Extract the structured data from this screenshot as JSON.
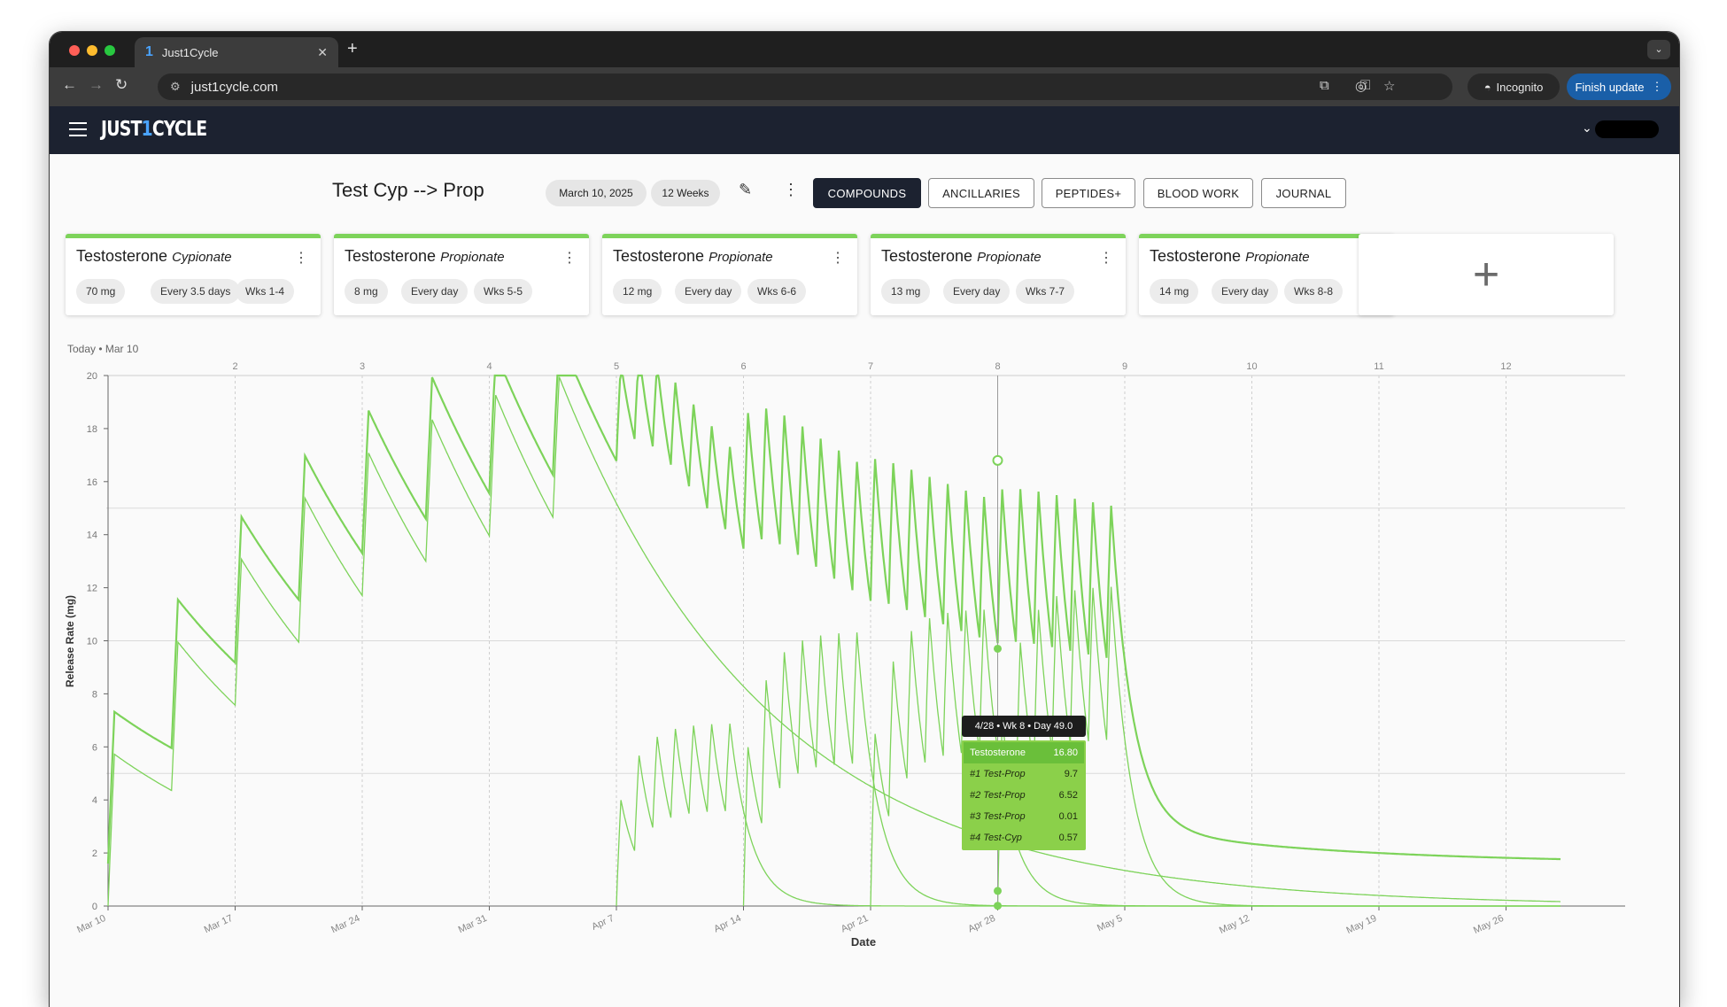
{
  "browser": {
    "tab_title": "Just1Cycle",
    "tab_favicon": "1",
    "url": "just1cycle.com",
    "incognito_label": "Incognito",
    "update_label": "Finish update"
  },
  "app": {
    "logo_before": "JUST",
    "logo_one": "1",
    "logo_after": "CYCLE"
  },
  "cycle": {
    "title": "Test Cyp --> Prop",
    "start_date": "March 10, 2025",
    "duration": "12 Weeks"
  },
  "tabs": [
    "COMPOUNDS",
    "ANCILLARIES",
    "PEPTIDES+",
    "BLOOD WORK",
    "JOURNAL"
  ],
  "compounds": [
    {
      "name": "Testosterone",
      "ester": "Cypionate",
      "dose": "70 mg",
      "freq": "Every 3.5 days",
      "weeks": "Wks 1-4"
    },
    {
      "name": "Testosterone",
      "ester": "Propionate",
      "dose": "8 mg",
      "freq": "Every day",
      "weeks": "Wks 5-5"
    },
    {
      "name": "Testosterone",
      "ester": "Propionate",
      "dose": "12 mg",
      "freq": "Every day",
      "weeks": "Wks 6-6"
    },
    {
      "name": "Testosterone",
      "ester": "Propionate",
      "dose": "13 mg",
      "freq": "Every day",
      "weeks": "Wks 7-7"
    },
    {
      "name": "Testosterone",
      "ester": "Propionate",
      "dose": "14 mg",
      "freq": "Every day",
      "weeks": "Wks 8-8"
    }
  ],
  "add_card_glyph": "+",
  "chart_data": {
    "type": "line",
    "today_label": "Today • Mar 10",
    "xlabel": "Date",
    "ylabel": "Release Rate (mg)",
    "ylim": [
      0,
      20
    ],
    "yticks": [
      0,
      2,
      4,
      6,
      8,
      10,
      12,
      14,
      16,
      18,
      20
    ],
    "week_ticks": [
      "2",
      "3",
      "4",
      "5",
      "6",
      "7",
      "8",
      "9",
      "10",
      "11",
      "12"
    ],
    "date_ticks": [
      "Mar 10",
      "Mar 17",
      "Mar 24",
      "Mar 31",
      "Apr 7",
      "Apr 14",
      "Apr 21",
      "Apr 28",
      "May 5",
      "May 12",
      "May 19",
      "May 26"
    ],
    "grid": true,
    "series": [
      {
        "name": "Testosterone",
        "color": "#7dd35a"
      },
      {
        "name": "#1 Test-Prop",
        "color": "#7dd35a"
      },
      {
        "name": "#2 Test-Prop",
        "color": "#7dd35a"
      },
      {
        "name": "#3 Test-Prop",
        "color": "#7dd35a"
      },
      {
        "name": "#4 Test-Cyp",
        "color": "#7dd35a"
      }
    ],
    "hover": {
      "header": "4/28 • Wk 8 • Day 49.0",
      "rows": [
        {
          "label": "Testosterone",
          "value": "16.80"
        },
        {
          "label": "#1 Test-Prop",
          "value": "9.7"
        },
        {
          "label": "#2 Test-Prop",
          "value": "6.52"
        },
        {
          "label": "#3 Test-Prop",
          "value": "0.01"
        },
        {
          "label": "#4 Test-Cyp",
          "value": "0.57"
        }
      ]
    }
  }
}
